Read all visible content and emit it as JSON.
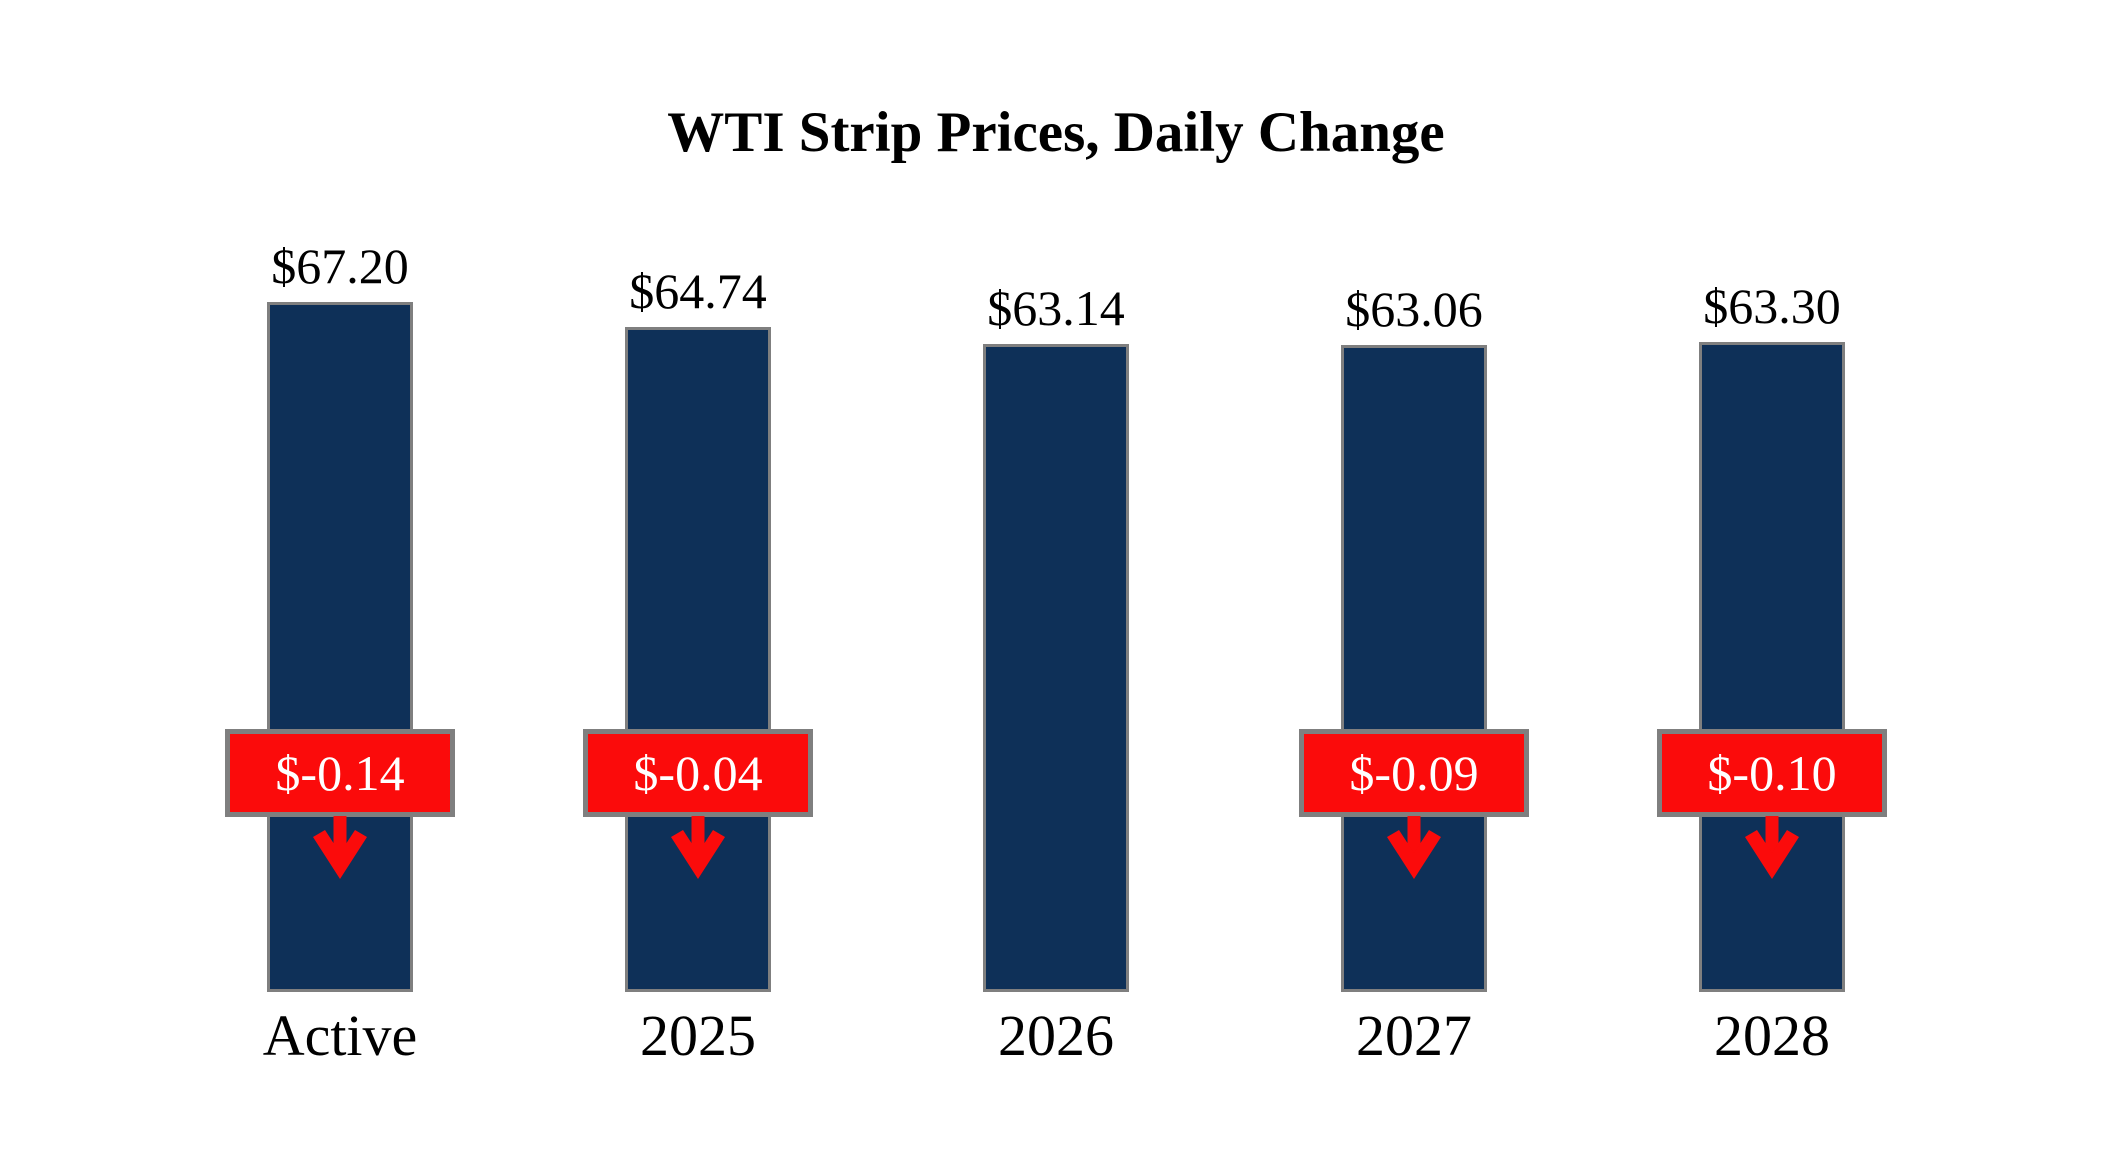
{
  "title": "WTI Strip Prices, Daily Change",
  "colors": {
    "background": "#ffffff",
    "bar_fill": "#0e3058",
    "bar_border": "#7f7f7f",
    "badge_fill": "#fb0b0b",
    "badge_border": "#7f7f7f",
    "badge_text": "#ffffff",
    "arrow": "#fb0b0b",
    "text": "#000000"
  },
  "chart_data": {
    "type": "bar",
    "title": "WTI Strip Prices, Daily Change",
    "categories": [
      "Active",
      "2025",
      "2026",
      "2027",
      "2028"
    ],
    "values": [
      67.2,
      64.74,
      63.14,
      63.06,
      63.3
    ],
    "value_labels": [
      "$67.20",
      "$64.74",
      "$63.14",
      "$63.06",
      "$63.30"
    ],
    "changes": [
      -0.14,
      -0.04,
      null,
      -0.09,
      -0.1
    ],
    "change_labels": [
      "$-0.14",
      "$-0.04",
      null,
      "$-0.09",
      "$-0.10"
    ],
    "change_direction": "down",
    "xlabel": "",
    "ylabel": "",
    "ylim": [
      0,
      67.2
    ],
    "grid": false,
    "legend": false
  }
}
